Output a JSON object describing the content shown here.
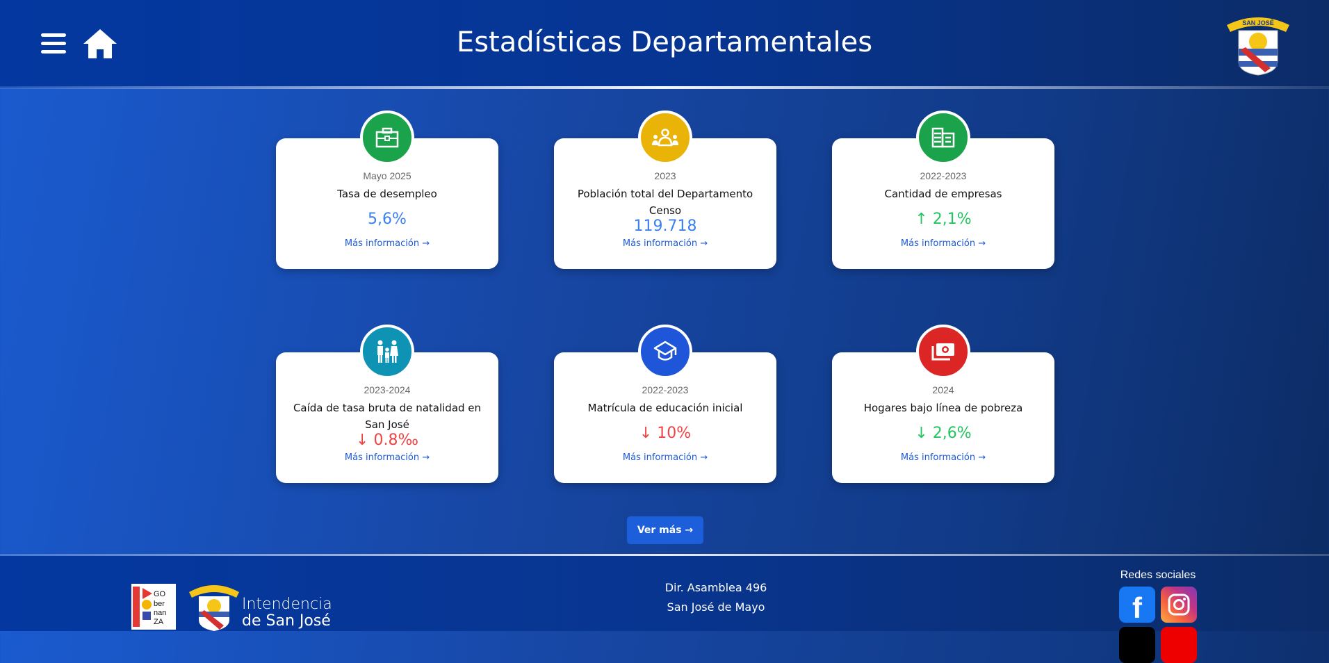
{
  "header": {
    "title": "Estadísticas Departamentales",
    "crest_text": "SAN JOSÉ"
  },
  "cards": [
    {
      "period": "Mayo 2025",
      "title": "Tasa de desempleo",
      "value": "5,6%",
      "link": "Más información →",
      "icon": "briefcase-icon",
      "color": "#1aa34a",
      "value_color": "#3b7ff0"
    },
    {
      "period": "2023",
      "title": "Población total del Departamento Censo",
      "value": "119.718",
      "link": "Más información →",
      "icon": "people-icon",
      "color": "#eab308",
      "value_color": "#3b7ff0"
    },
    {
      "period": "2022-2023",
      "title": "Cantidad de empresas",
      "value": "↑ 2,1%",
      "link": "Más información →",
      "icon": "buildings-icon",
      "color": "#1aa34a",
      "value_color": "#22c55e"
    },
    {
      "period": "2023-2024",
      "title": "Caída de tasa bruta de natalidad en San José",
      "value": "↓ 0.8‰",
      "link": "Más información →",
      "icon": "family-icon",
      "color": "#0e93b5",
      "value_color": "#ef4444"
    },
    {
      "period": "2022-2023",
      "title": "Matrícula de educación inicial",
      "value": "↓ 10%",
      "link": "Más información →",
      "icon": "graduation-cap-icon",
      "color": "#1f55d9",
      "value_color": "#ef4444"
    },
    {
      "period": "2024",
      "title": "Hogares bajo línea de pobreza",
      "value": "↓ 2,6%",
      "link": "Más información →",
      "icon": "money-icon",
      "color": "#dc2626",
      "value_color": "#22c55e"
    }
  ],
  "ver_mas": "Ver más →",
  "footer": {
    "address_line1": "Dir. Asamblea 496",
    "address_line2": "San José de Mayo",
    "social_title": "Redes sociales",
    "logo_escuela": "ESCUELA GO ber nan ZA",
    "logo_intendencia_1": "Intendencia",
    "logo_intendencia_2": "de San José"
  }
}
